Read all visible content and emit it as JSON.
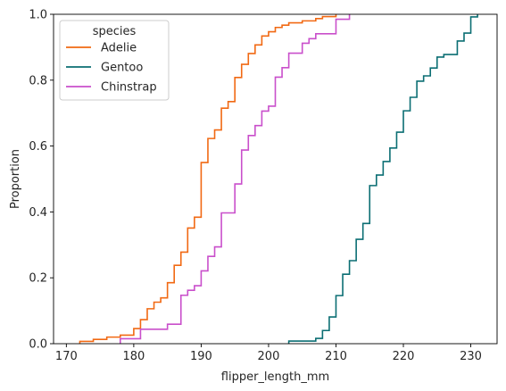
{
  "chart_data": {
    "type": "line",
    "subtype": "ecdf-step",
    "xlabel": "flipper_length_mm",
    "ylabel": "Proportion",
    "xlim": [
      168.1,
      233.9
    ],
    "ylim": [
      0,
      1
    ],
    "xticks": [
      170,
      180,
      190,
      200,
      210,
      220,
      230
    ],
    "yticks": [
      0.0,
      0.2,
      0.4,
      0.6,
      0.8,
      1.0
    ],
    "xtick_labels": [
      "170",
      "180",
      "190",
      "200",
      "210",
      "220",
      "230"
    ],
    "ytick_labels": [
      "0.0",
      "0.2",
      "0.4",
      "0.6",
      "0.8",
      "1.0"
    ],
    "grid": false,
    "legend": {
      "title": "species",
      "position": "top-left"
    },
    "series": [
      {
        "name": "Adelie",
        "color": "#f16913",
        "points": [
          [
            172,
            0.007
          ],
          [
            174,
            0.013
          ],
          [
            176,
            0.02
          ],
          [
            178,
            0.026
          ],
          [
            180,
            0.046
          ],
          [
            181,
            0.073
          ],
          [
            182,
            0.106
          ],
          [
            183,
            0.126
          ],
          [
            184,
            0.139
          ],
          [
            185,
            0.185
          ],
          [
            186,
            0.238
          ],
          [
            187,
            0.278
          ],
          [
            188,
            0.351
          ],
          [
            189,
            0.384
          ],
          [
            190,
            0.55
          ],
          [
            191,
            0.623
          ],
          [
            192,
            0.649
          ],
          [
            193,
            0.715
          ],
          [
            194,
            0.735
          ],
          [
            195,
            0.808
          ],
          [
            196,
            0.848
          ],
          [
            197,
            0.881
          ],
          [
            198,
            0.907
          ],
          [
            199,
            0.934
          ],
          [
            200,
            0.947
          ],
          [
            201,
            0.96
          ],
          [
            202,
            0.967
          ],
          [
            203,
            0.974
          ],
          [
            205,
            0.98
          ],
          [
            207,
            0.987
          ],
          [
            208,
            0.993
          ],
          [
            210,
            1.0
          ]
        ]
      },
      {
        "name": "Gentoo",
        "color": "#0b6e73",
        "points": [
          [
            203,
            0.008
          ],
          [
            207,
            0.016
          ],
          [
            208,
            0.04
          ],
          [
            209,
            0.081
          ],
          [
            210,
            0.146
          ],
          [
            211,
            0.211
          ],
          [
            212,
            0.252
          ],
          [
            213,
            0.317
          ],
          [
            214,
            0.365
          ],
          [
            215,
            0.48
          ],
          [
            216,
            0.512
          ],
          [
            217,
            0.553
          ],
          [
            218,
            0.594
          ],
          [
            219,
            0.642
          ],
          [
            220,
            0.707
          ],
          [
            221,
            0.748
          ],
          [
            222,
            0.797
          ],
          [
            223,
            0.813
          ],
          [
            224,
            0.837
          ],
          [
            225,
            0.87
          ],
          [
            226,
            0.878
          ],
          [
            228,
            0.919
          ],
          [
            229,
            0.943
          ],
          [
            230,
            0.992
          ],
          [
            231,
            1.0
          ]
        ]
      },
      {
        "name": "Chinstrap",
        "color": "#c94fcb",
        "points": [
          [
            178,
            0.015
          ],
          [
            181,
            0.044
          ],
          [
            185,
            0.059
          ],
          [
            187,
            0.147
          ],
          [
            188,
            0.162
          ],
          [
            189,
            0.176
          ],
          [
            190,
            0.221
          ],
          [
            191,
            0.265
          ],
          [
            192,
            0.294
          ],
          [
            193,
            0.397
          ],
          [
            195,
            0.485
          ],
          [
            196,
            0.588
          ],
          [
            197,
            0.632
          ],
          [
            198,
            0.662
          ],
          [
            199,
            0.706
          ],
          [
            200,
            0.721
          ],
          [
            201,
            0.809
          ],
          [
            202,
            0.838
          ],
          [
            203,
            0.882
          ],
          [
            205,
            0.912
          ],
          [
            206,
            0.926
          ],
          [
            207,
            0.941
          ],
          [
            210,
            0.985
          ],
          [
            212,
            1.0
          ]
        ]
      }
    ]
  }
}
